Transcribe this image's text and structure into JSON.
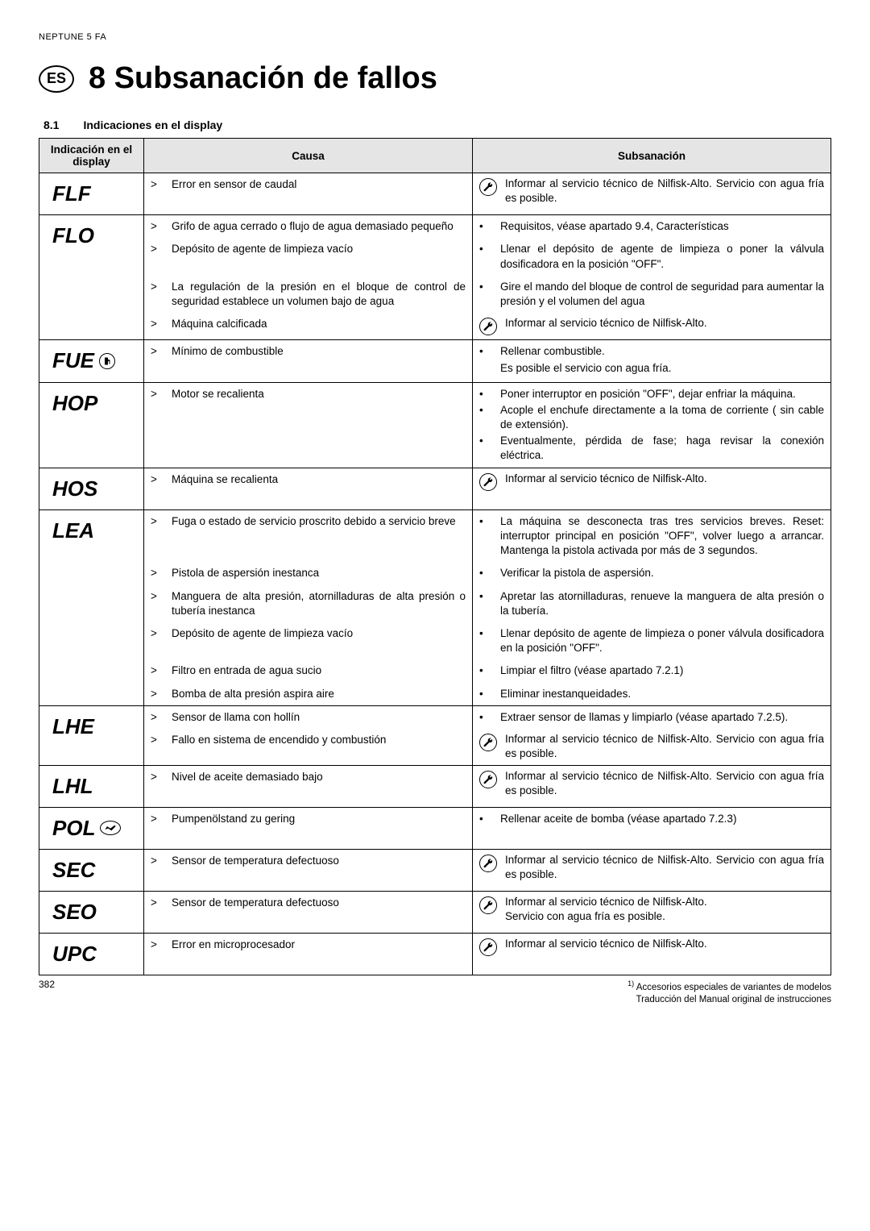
{
  "header": {
    "doc_title": "NEPTUNE 5 FA"
  },
  "lang_badge": "ES",
  "title": "8  Subsanación de fallos",
  "section": {
    "num": "8.1",
    "name": "Indicaciones en el display"
  },
  "columns": {
    "ind": "Indicación en el display",
    "cause": "Causa",
    "remedy": "Subsanación"
  },
  "service_text": "Informar al servicio técnico de Nilfisk-Alto.",
  "service_cold": "Informar al servicio técnico de Nilfisk-Alto. Servicio con agua fría es posible.",
  "rows": [
    {
      "code": "FLF",
      "causes": [
        {
          "m": ">",
          "t": "Error en sensor de caudal"
        }
      ],
      "remedy_type": "wrench",
      "remedy_text": "Informar al servicio técnico de Nilfisk-Alto. Servicio con agua fría es posible."
    },
    {
      "code": "FLO",
      "groups": [
        {
          "cause": {
            "m": ">",
            "t": "Grifo de agua cerrado o flujo de agua demasiado pequeño"
          },
          "remedy": {
            "m": "•",
            "t": "Requisitos, véase apartado 9.4, Características"
          }
        },
        {
          "cause": {
            "m": ">",
            "t": "Depósito de agente de limpieza vacío"
          },
          "remedy": {
            "m": "•",
            "t": "Llenar el depósito de agente de limpieza o poner la válvula dosificadora en la posición \"OFF\"."
          }
        },
        {
          "cause": {
            "m": ">",
            "t": "La regulación de la presión en el bloque de control de seguridad establece un volumen bajo de agua"
          },
          "remedy": {
            "m": "•",
            "t": "Gire el mando del bloque de control de seguridad para aumentar la presión y el volumen del agua"
          }
        },
        {
          "cause": {
            "m": ">",
            "t": "Máquina calcificada"
          },
          "remedy_type": "wrench",
          "remedy_text": "Informar al servicio técnico de Nilfisk-Alto."
        }
      ]
    },
    {
      "code": "FUE",
      "icon": "fuel",
      "causes": [
        {
          "m": ">",
          "t": "Mínimo de combustible"
        }
      ],
      "remedies": [
        {
          "m": "•",
          "t": "Rellenar combustible."
        },
        {
          "m": "",
          "t": "Es posible el servicio con agua fría."
        }
      ]
    },
    {
      "code": "HOP",
      "causes": [
        {
          "m": ">",
          "t": "Motor se recalienta"
        }
      ],
      "remedies": [
        {
          "m": "•",
          "t": "Poner interruptor en posición \"OFF\", dejar enfriar la máquina."
        },
        {
          "m": "•",
          "t": "Acople el enchufe directamente a la toma de corriente ( sin cable de extensión)."
        },
        {
          "m": "•",
          "t": "Eventualmente, pérdida de fase; haga revisar la conexión eléctrica."
        }
      ]
    },
    {
      "code": "HOS",
      "causes": [
        {
          "m": ">",
          "t": "Máquina se recalienta"
        }
      ],
      "remedy_type": "wrench",
      "remedy_text": "Informar al servicio técnico de Nilfisk-Alto."
    },
    {
      "code": "LEA",
      "groups": [
        {
          "cause": {
            "m": ">",
            "t": "Fuga o estado de servicio proscrito debido a servicio breve"
          },
          "remedy": {
            "m": "•",
            "t": "La máquina se desconecta tras tres servicios breves. Reset: interruptor principal en posición \"OFF\", volver luego a arrancar. Mantenga la pistola activada por más de 3 segundos."
          }
        },
        {
          "cause": {
            "m": ">",
            "t": "Pistola de aspersión inestanca"
          },
          "remedy": {
            "m": "•",
            "t": "Verificar la pistola de aspersión."
          }
        },
        {
          "cause": {
            "m": ">",
            "t": "Manguera de alta presión, atornilladuras de alta presión o tubería inestanca"
          },
          "remedy": {
            "m": "•",
            "t": "Apretar las atornilladuras, renueve la manguera de alta presión o la tubería."
          }
        },
        {
          "cause": {
            "m": ">",
            "t": "Depósito de agente de limpieza vacío"
          },
          "remedy": {
            "m": "•",
            "t": "Llenar depósito de agente de limpieza o poner válvula dosificadora en la posición \"OFF\"."
          }
        },
        {
          "cause": {
            "m": ">",
            "t": "Filtro en entrada de agua sucio"
          },
          "remedy": {
            "m": "•",
            "t": "Limpiar el filtro (véase apartado 7.2.1)"
          }
        },
        {
          "cause": {
            "m": ">",
            "t": "Bomba de alta presión aspira aire"
          },
          "remedy": {
            "m": "•",
            "t": "Eliminar inestanqueidades."
          }
        }
      ]
    },
    {
      "code": "LHE",
      "groups": [
        {
          "cause": {
            "m": ">",
            "t": "Sensor de llama con hollín"
          },
          "remedy": {
            "m": "•",
            "t": "Extraer sensor de llamas y limpiarlo (véase apartado 7.2.5)."
          }
        },
        {
          "cause": {
            "m": ">",
            "t": "Fallo en sistema de encendido y combustión"
          },
          "remedy_type": "wrench",
          "remedy_text": "Informar al servicio técnico de Nilfisk-Alto. Servicio con agua fría es posible."
        }
      ]
    },
    {
      "code": "LHL",
      "causes": [
        {
          "m": ">",
          "t": "Nivel de aceite demasiado bajo"
        }
      ],
      "remedy_type": "wrench",
      "remedy_text": "Informar al servicio técnico de Nilfisk-Alto. Servicio con agua fría es posible."
    },
    {
      "code": "POL",
      "icon": "oil",
      "causes": [
        {
          "m": ">",
          "t": "Pumpenölstand zu gering"
        }
      ],
      "remedies": [
        {
          "m": "•",
          "t": "Rellenar aceite de bomba (véase apartado 7.2.3)"
        }
      ]
    },
    {
      "code": "SEC",
      "causes": [
        {
          "m": ">",
          "t": "Sensor de temperatura defectuoso"
        }
      ],
      "remedy_type": "wrench",
      "remedy_text": "Informar al servicio técnico de Nilfisk-Alto. Servicio con agua fría es posible."
    },
    {
      "code": "SEO",
      "causes": [
        {
          "m": ">",
          "t": "Sensor de temperatura defectuoso"
        }
      ],
      "remedy_type": "wrench",
      "remedy_text": "Informar al servicio técnico de Nilfisk-Alto.\nServicio con agua fría es posible.",
      "multiline": true
    },
    {
      "code": "UPC",
      "causes": [
        {
          "m": ">",
          "t": "Error en microprocesador"
        }
      ],
      "remedy_type": "wrench",
      "remedy_text": "Informar al servicio técnico de Nilfisk-Alto."
    }
  ],
  "footer": {
    "page": "382",
    "note1": "Accesorios especiales de variantes de modelos",
    "note2": "Traducción del Manual original de instrucciones"
  }
}
